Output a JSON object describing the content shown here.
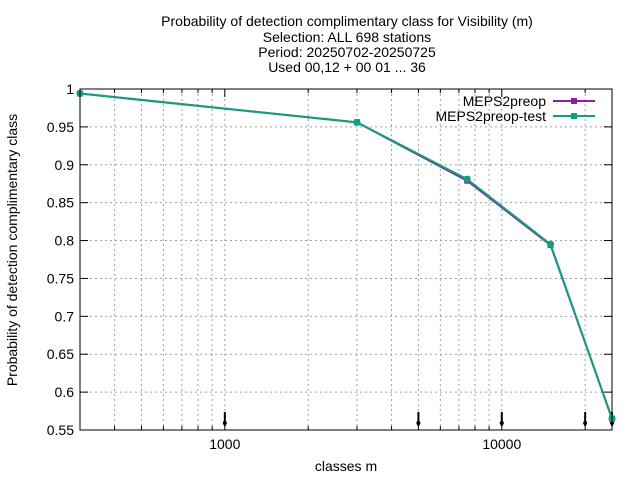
{
  "chart_data": {
    "type": "line",
    "title_lines": [
      "Probability of detection complimentary class  for Visibility (m)",
      "Selection: ALL    698 stations",
      "Period: 20250702-20250725",
      "Used 00,12 + 00 01 ... 36"
    ],
    "xlabel": "classes m",
    "ylabel": "Probability of detection complimentary class",
    "x_scale": "log",
    "xlim": [
      300,
      25000
    ],
    "ylim": [
      0.55,
      1.0
    ],
    "x_ticks": [
      1000,
      10000
    ],
    "x_tick_labels": [
      "1000",
      "10000"
    ],
    "y_ticks": [
      0.55,
      0.6,
      0.65,
      0.7,
      0.75,
      0.8,
      0.85,
      0.9,
      0.95,
      1.0
    ],
    "y_tick_labels": [
      "0.55",
      "0.6",
      "0.65",
      "0.7",
      "0.75",
      "0.8",
      "0.85",
      "0.9",
      "0.95",
      "1"
    ],
    "grid": true,
    "legend_position": "top-right",
    "series": [
      {
        "name": "MEPS2preop",
        "color": "#8b1fa9",
        "x": [
          300,
          3000,
          7500,
          15000,
          25000
        ],
        "y": [
          0.994,
          0.956,
          0.879,
          0.794,
          0.565
        ]
      },
      {
        "name": "MEPS2preop-test",
        "color": "#109f7f",
        "x": [
          300,
          3000,
          7500,
          15000,
          25000
        ],
        "y": [
          0.994,
          0.956,
          0.881,
          0.795,
          0.565
        ]
      }
    ],
    "count_markers_x": [
      1000,
      5000,
      10000,
      20000,
      25000
    ]
  }
}
